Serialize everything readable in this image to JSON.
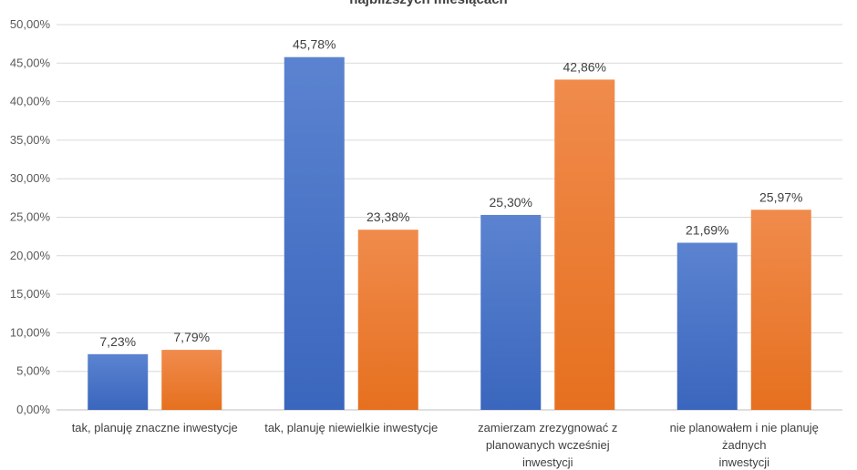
{
  "chart_data": {
    "type": "bar",
    "title": "najbliższych miesiącach",
    "categories": [
      [
        "tak, planuję znaczne inwestycje"
      ],
      [
        "tak, planuję niewielkie inwestycje"
      ],
      [
        "zamierzam zrezygnować z",
        "planowanych wcześniej",
        "inwestycji"
      ],
      [
        "nie planowałem i nie planuję",
        "żadnych",
        "inwestycji"
      ]
    ],
    "series": [
      {
        "color": "#4472c4",
        "values": [
          7.23,
          45.78,
          25.3,
          21.69
        ],
        "labels": [
          "7,23%",
          "45,78%",
          "25,30%",
          "21,69%"
        ]
      },
      {
        "color": "#ed7d31",
        "values": [
          7.79,
          23.38,
          42.86,
          25.97
        ],
        "labels": [
          "7,79%",
          "23,38%",
          "42,86%",
          "25,97%"
        ]
      }
    ],
    "ylim": [
      0,
      50
    ],
    "yticks": [
      0,
      5,
      10,
      15,
      20,
      25,
      30,
      35,
      40,
      45,
      50
    ],
    "ytick_labels": [
      "0,00%",
      "5,00%",
      "10,00%",
      "15,00%",
      "20,00%",
      "25,00%",
      "30,00%",
      "35,00%",
      "40,00%",
      "45,00%",
      "50,00%"
    ],
    "grid": true,
    "legend": "none"
  }
}
